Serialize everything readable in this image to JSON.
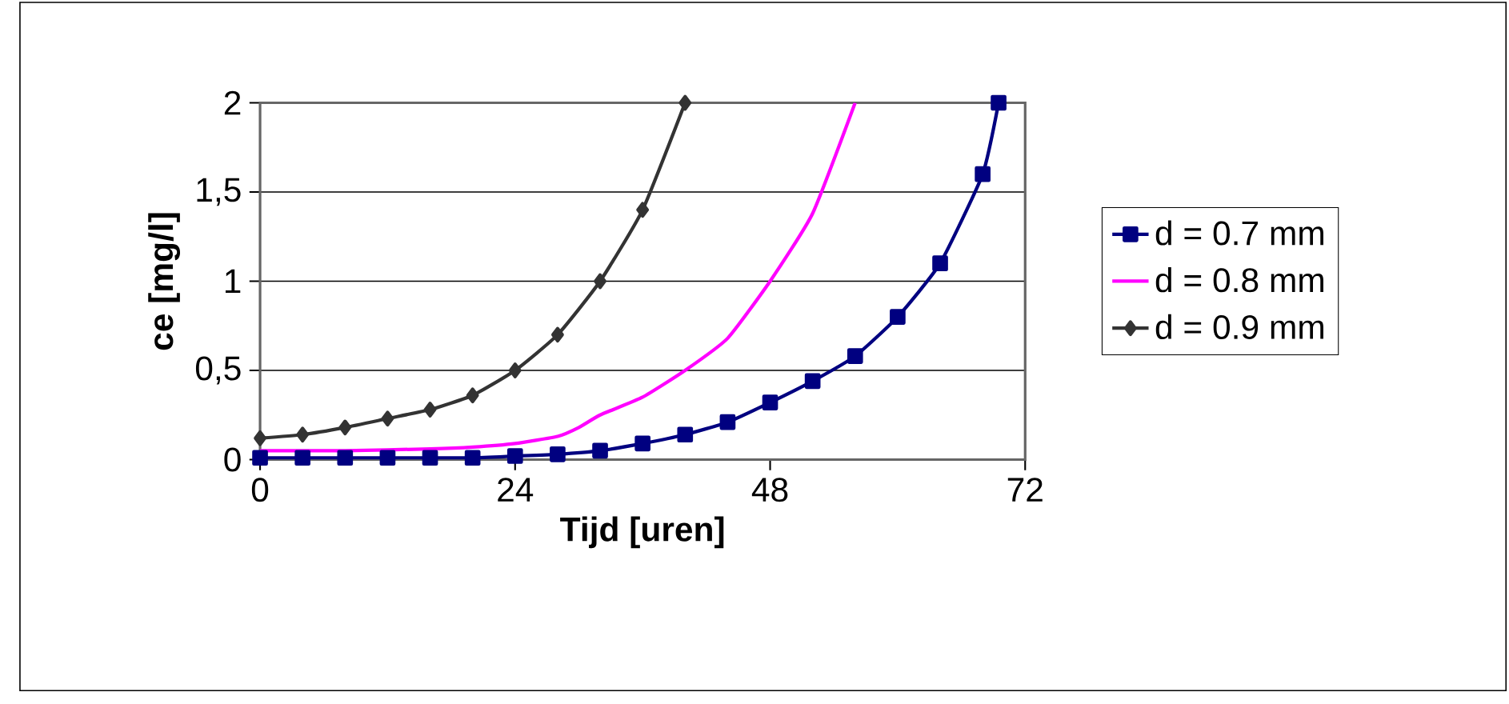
{
  "chart_data": {
    "type": "line",
    "xlabel": "Tijd [uren]",
    "ylabel": "ce [mg/l]",
    "xlim": [
      0,
      72
    ],
    "ylim": [
      0,
      2
    ],
    "xticks": [
      0,
      24,
      48,
      72
    ],
    "yticks": [
      {
        "value": 0,
        "label": "0"
      },
      {
        "value": 0.5,
        "label": "0,5"
      },
      {
        "value": 1,
        "label": "1"
      },
      {
        "value": 1.5,
        "label": "1,5"
      },
      {
        "value": 2,
        "label": "2"
      }
    ],
    "grid": "y",
    "legend": "right",
    "series": [
      {
        "name": "d = 0.7 mm",
        "color": "#000080",
        "marker": "square",
        "x": [
          0,
          4,
          8,
          12,
          16,
          20,
          24,
          28,
          32,
          36,
          40,
          44,
          48,
          52,
          56,
          60,
          64,
          68,
          69.5
        ],
        "values": [
          0.01,
          0.01,
          0.01,
          0.01,
          0.01,
          0.01,
          0.02,
          0.03,
          0.05,
          0.09,
          0.14,
          0.21,
          0.32,
          0.44,
          0.58,
          0.8,
          1.1,
          1.6,
          2.0
        ]
      },
      {
        "name": "d = 0.8 mm",
        "color": "#ff00ff",
        "marker": "none",
        "x": [
          0,
          8,
          16,
          20,
          24,
          28,
          30,
          32,
          36,
          40,
          44,
          48,
          52,
          56
        ],
        "values": [
          0.05,
          0.05,
          0.06,
          0.07,
          0.09,
          0.13,
          0.18,
          0.25,
          0.35,
          0.5,
          0.68,
          1.0,
          1.38,
          2.0
        ]
      },
      {
        "name": "d = 0.9 mm",
        "color": "#333333",
        "marker": "diamond",
        "x": [
          0,
          4,
          8,
          12,
          16,
          20,
          24,
          28,
          32,
          36,
          40
        ],
        "values": [
          0.12,
          0.14,
          0.18,
          0.23,
          0.28,
          0.36,
          0.5,
          0.7,
          1.0,
          1.4,
          2.0
        ]
      }
    ]
  }
}
